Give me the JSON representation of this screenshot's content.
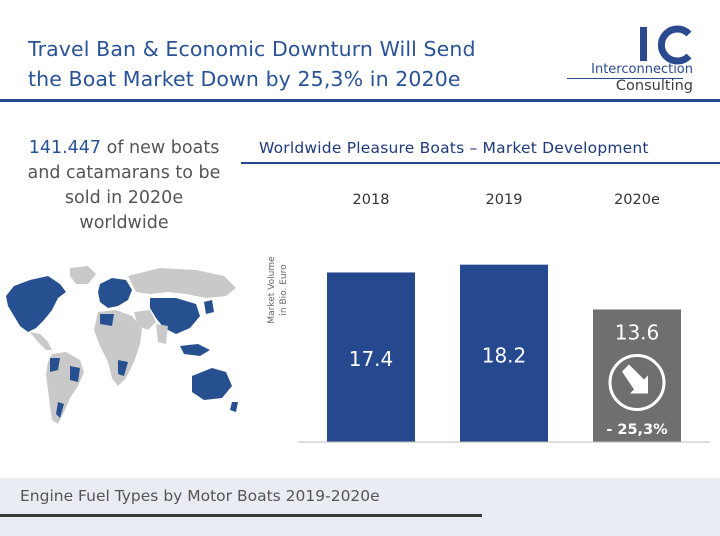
{
  "header": {
    "title_line1": "Travel Ban & Economic Downturn Will Send",
    "title_line2": "the Boat Market Down by 25,3% in 2020e"
  },
  "logo": {
    "mark": "IC",
    "line1": "Interconnection",
    "line2": "Consulting"
  },
  "headline": {
    "number": "141.447",
    "text_rest1": " of new boats",
    "line2": "and catamarans to be",
    "line3": "sold in 2020e",
    "line4": "worldwide"
  },
  "colors": {
    "brand_blue": "#25488f",
    "bar_gray": "#6f6f6f",
    "map_gray": "#c9c9c9"
  },
  "chart_data": {
    "type": "bar",
    "title": "Worldwide Pleasure Boats – Market Development",
    "ylabel_line1": "Market Volume",
    "ylabel_line2": "in Bio. Euro",
    "categories": [
      "2018",
      "2019",
      "2020e"
    ],
    "values": [
      17.4,
      18.2,
      13.6
    ],
    "labels": [
      "17.4",
      "18.2",
      "13.6"
    ],
    "ylim": [
      0,
      19.5
    ],
    "change_label": "- 25,3%",
    "highlight_index": 2
  },
  "footer": {
    "section_title": "Engine Fuel Types by Motor Boats 2019-2020e"
  }
}
